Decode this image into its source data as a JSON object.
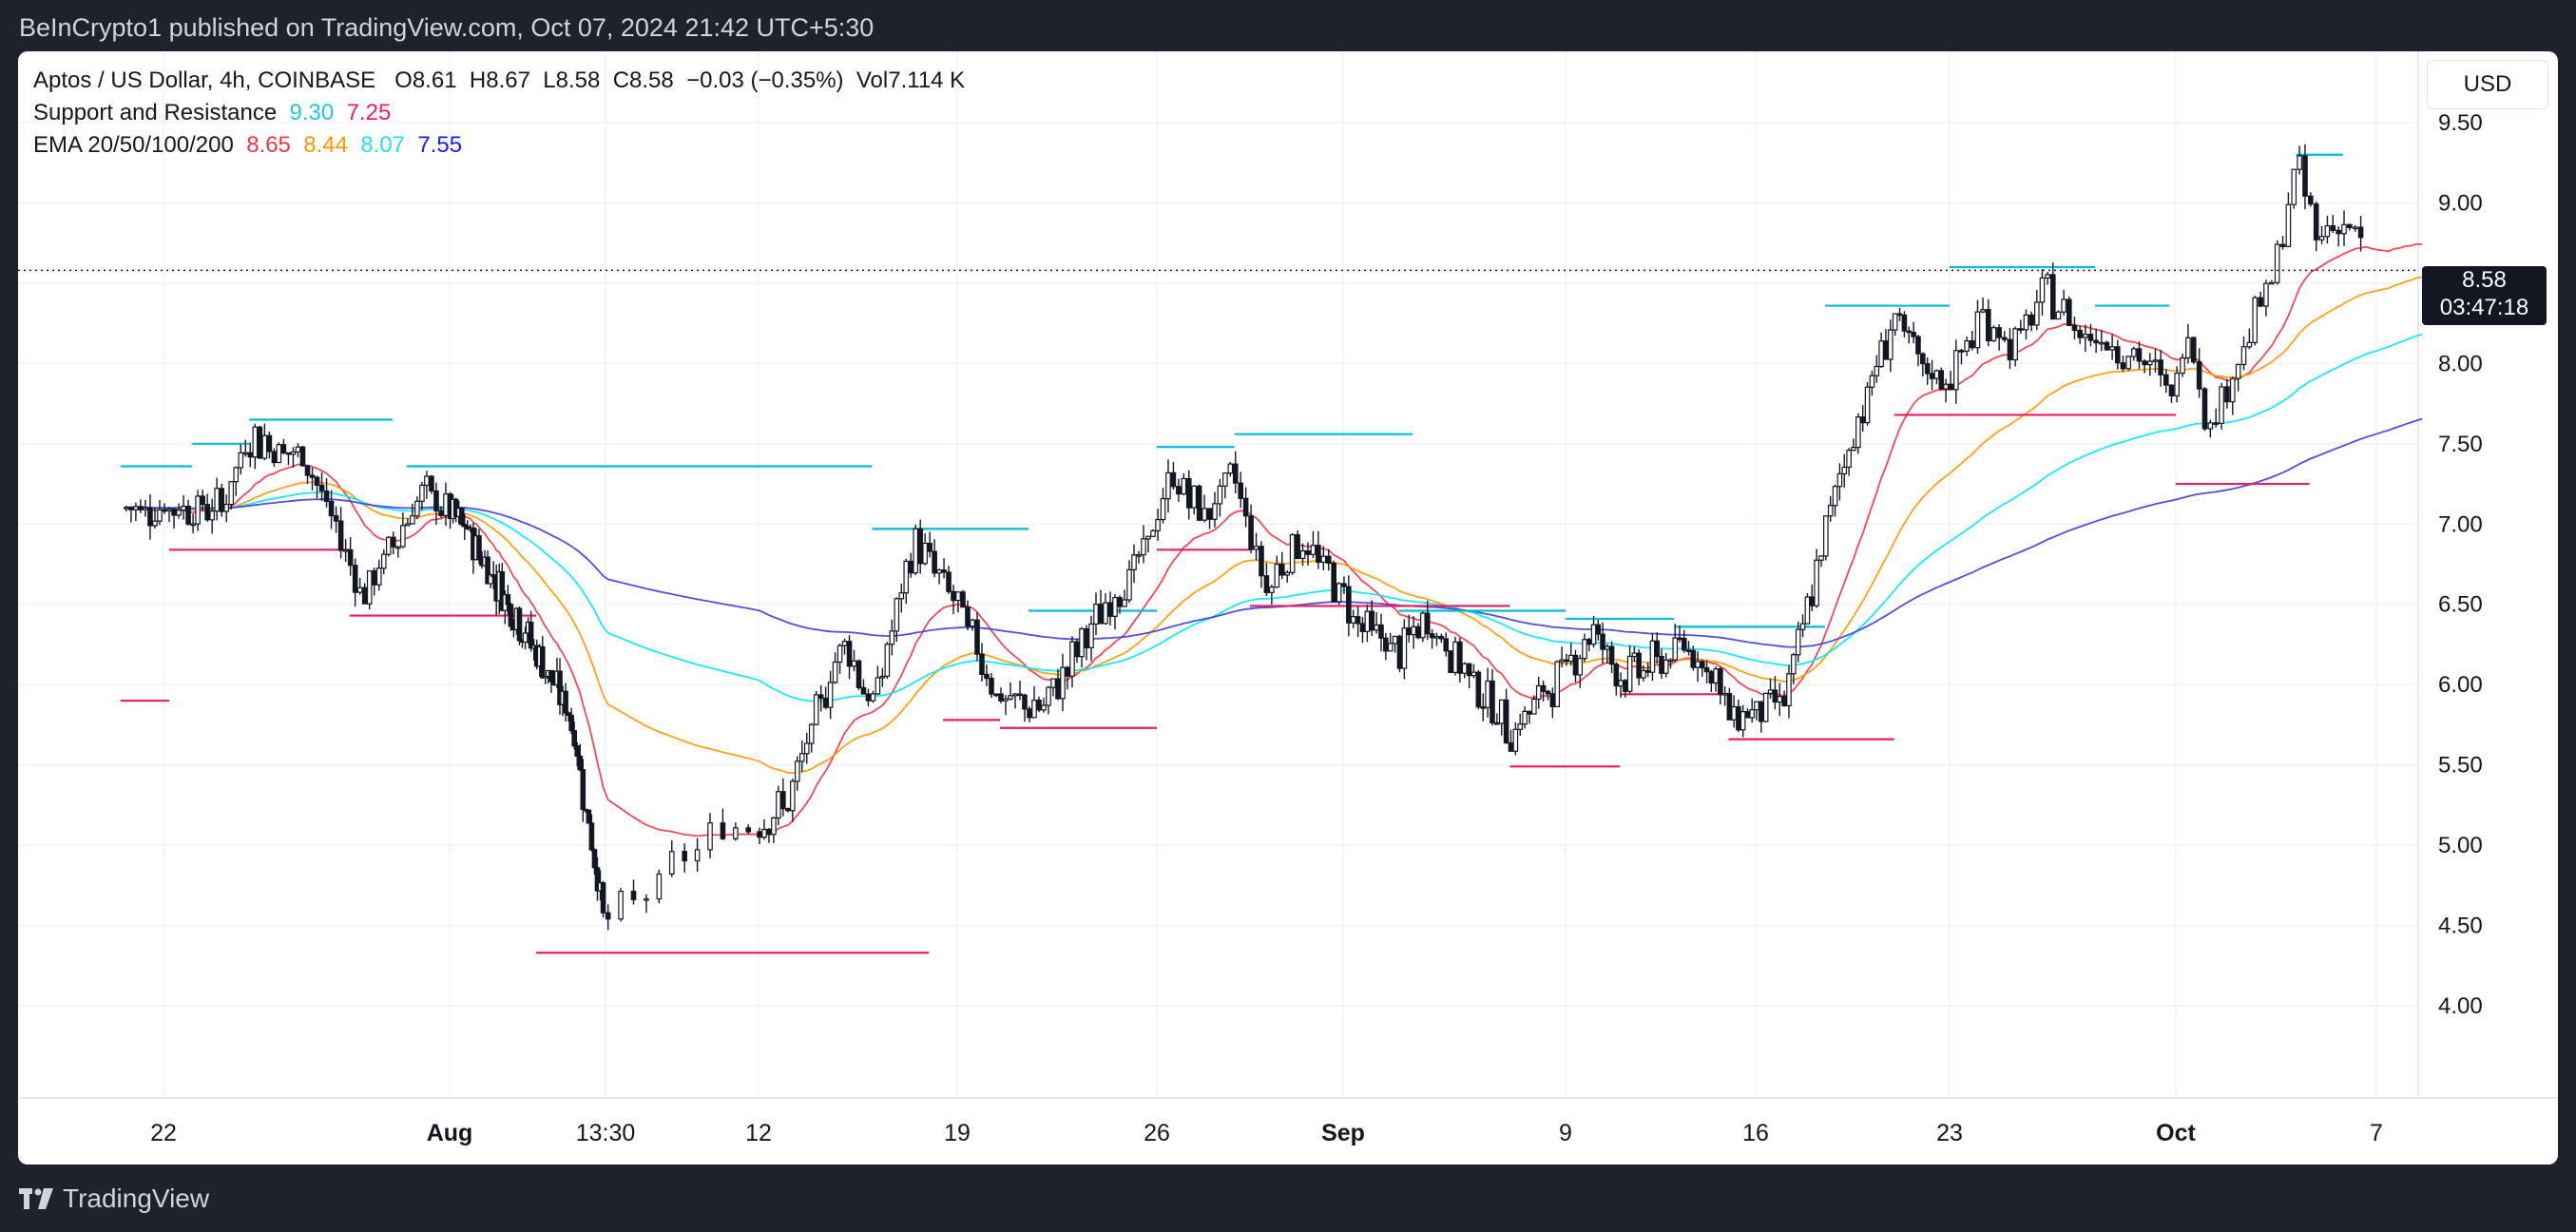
{
  "header": {
    "published_line": "BeInCrypto1 published on TradingView.com, Oct 07, 2024 21:42 UTC+5:30"
  },
  "brand": {
    "name": "TradingView"
  },
  "currency_button": "USD",
  "legend": {
    "symbol": "Aptos / US Dollar, 4h, COINBASE",
    "ohlc": {
      "o": "O8.61",
      "h": "H8.67",
      "l": "L8.58",
      "c": "C8.58",
      "change": "−0.03 (−0.35%)",
      "vol": "Vol7.114 K"
    },
    "sr_name": "Support and Resistance",
    "sr_values": [
      "9.30",
      "7.25"
    ],
    "ema_name": "EMA 20/50/100/200",
    "ema_values": [
      "8.65",
      "8.44",
      "8.07",
      "7.55"
    ]
  },
  "colors": {
    "candle": "#131722",
    "resistance": "#00bcd4",
    "support": "#e91e63",
    "ema20": "#f23645",
    "ema50": "#ff9800",
    "ema100": "#00e5ff",
    "ema200": "#3d3dd6",
    "sr_value_resistance": "#26c6da",
    "sr_value_support": "#e91e63",
    "ema_value_colors": [
      "#f23645",
      "#ff9800",
      "#26e0ea",
      "#1a1aff"
    ]
  },
  "price_tag": {
    "price": "8.58",
    "countdown": "03:47:18"
  },
  "chart_data": {
    "type": "candlestick",
    "x_ticks": [
      "22",
      "Aug",
      "13:30",
      "12",
      "19",
      "26",
      "Sep",
      "9",
      "16",
      "23",
      "Oct",
      "7"
    ],
    "y_ticks": [
      "9.50",
      "9.00",
      "8.50",
      "8.00",
      "7.50",
      "7.00",
      "6.50",
      "6.00",
      "5.50",
      "5.00",
      "4.50",
      "4.00"
    ],
    "ylim": [
      3.75,
      9.8
    ],
    "last_price": 8.58,
    "close_anchors": [
      {
        "d": 0,
        "c": 7.1
      },
      {
        "d": 2,
        "c": 7.1
      },
      {
        "d": 3,
        "c": 7.55
      },
      {
        "d": 5,
        "c": 7.4
      },
      {
        "d": 7,
        "c": 6.55
      },
      {
        "d": 9,
        "c": 7.2
      },
      {
        "d": 11,
        "c": 6.95
      },
      {
        "d": 14,
        "c": 6.4
      },
      {
        "d": 17,
        "c": 5.8
      },
      {
        "d": 19,
        "c": 4.5
      },
      {
        "d": 20.5,
        "c": 5.1
      },
      {
        "d": 22,
        "c": 5.25
      },
      {
        "d": 24,
        "c": 6.3
      },
      {
        "d": 25,
        "c": 5.85
      },
      {
        "d": 26.5,
        "c": 6.9
      },
      {
        "d": 28,
        "c": 6.5
      },
      {
        "d": 29.5,
        "c": 5.9
      },
      {
        "d": 31,
        "c": 5.85
      },
      {
        "d": 32.5,
        "c": 6.3
      },
      {
        "d": 34.5,
        "c": 6.8
      },
      {
        "d": 35.5,
        "c": 7.3
      },
      {
        "d": 36.5,
        "c": 7.05
      },
      {
        "d": 37.5,
        "c": 7.3
      },
      {
        "d": 38.5,
        "c": 6.6
      },
      {
        "d": 39.5,
        "c": 6.9
      },
      {
        "d": 40.5,
        "c": 6.7
      },
      {
        "d": 41.5,
        "c": 6.4
      },
      {
        "d": 43,
        "c": 6.2
      },
      {
        "d": 44,
        "c": 6.4
      },
      {
        "d": 46,
        "c": 5.95
      },
      {
        "d": 47,
        "c": 5.7
      },
      {
        "d": 49,
        "c": 6.1
      },
      {
        "d": 50,
        "c": 6.35
      },
      {
        "d": 51,
        "c": 6.05
      },
      {
        "d": 52.5,
        "c": 6.15
      },
      {
        "d": 53.5,
        "c": 6.25
      },
      {
        "d": 54.5,
        "c": 6.05
      },
      {
        "d": 55,
        "c": 5.8
      },
      {
        "d": 57,
        "c": 5.9
      },
      {
        "d": 57.5,
        "c": 6.2
      },
      {
        "d": 59,
        "c": 7.3
      },
      {
        "d": 60,
        "c": 7.8
      },
      {
        "d": 61,
        "c": 8.3
      },
      {
        "d": 62,
        "c": 7.95
      },
      {
        "d": 63,
        "c": 7.9
      },
      {
        "d": 64,
        "c": 8.3
      },
      {
        "d": 65,
        "c": 8.1
      },
      {
        "d": 66,
        "c": 8.45
      },
      {
        "d": 67,
        "c": 8.2
      },
      {
        "d": 68,
        "c": 8.15
      },
      {
        "d": 69,
        "c": 8.0
      },
      {
        "d": 70,
        "c": 7.8
      },
      {
        "d": 70.3,
        "c": 8.3
      },
      {
        "d": 71,
        "c": 7.6
      },
      {
        "d": 72,
        "c": 8.1
      },
      {
        "d": 73,
        "c": 8.6
      },
      {
        "d": 73.6,
        "c": 9.25
      },
      {
        "d": 74.2,
        "c": 8.8
      },
      {
        "d": 75,
        "c": 8.9
      },
      {
        "d": 76,
        "c": 8.6
      },
      {
        "d": 77,
        "c": 8.85
      },
      {
        "d": 77.5,
        "c": 8.58
      }
    ],
    "resistance_lines": [
      {
        "d1": -1.5,
        "d2": 1.0,
        "y": 7.36
      },
      {
        "d1": 1.0,
        "d2": 3.0,
        "y": 7.5
      },
      {
        "d1": 3.0,
        "d2": 8.0,
        "y": 7.65
      },
      {
        "d1": 8.5,
        "d2": 25.0,
        "y": 7.36
      },
      {
        "d1": 25.0,
        "d2": 30.5,
        "y": 6.97
      },
      {
        "d1": 30.5,
        "d2": 35.0,
        "y": 6.46
      },
      {
        "d1": 35.0,
        "d2": 37.5,
        "y": 7.48
      },
      {
        "d1": 37.5,
        "d2": 43.5,
        "y": 7.56
      },
      {
        "d1": 43.0,
        "d2": 49.0,
        "y": 6.46
      },
      {
        "d1": 49.0,
        "d2": 53.0,
        "y": 6.41
      },
      {
        "d1": 53.0,
        "d2": 58.5,
        "y": 6.36
      },
      {
        "d1": 58.5,
        "d2": 63.0,
        "y": 8.36
      },
      {
        "d1": 63.0,
        "d2": 67.5,
        "y": 8.6
      },
      {
        "d1": 67.5,
        "d2": 69.8,
        "y": 8.36
      },
      {
        "d1": 73.6,
        "d2": 75.0,
        "y": 9.3
      }
    ],
    "support_lines": [
      {
        "d1": -1.5,
        "d2": 0.2,
        "y": 5.9
      },
      {
        "d1": 0.2,
        "d2": 6.5,
        "y": 6.84
      },
      {
        "d1": 6.5,
        "d2": 15.0,
        "y": 6.43
      },
      {
        "d1": 15.0,
        "d2": 27.0,
        "y": 4.33
      },
      {
        "d1": 27.5,
        "d2": 29.5,
        "y": 5.78
      },
      {
        "d1": 29.5,
        "d2": 35.0,
        "y": 5.73
      },
      {
        "d1": 35.0,
        "d2": 38.0,
        "y": 6.84
      },
      {
        "d1": 38.0,
        "d2": 47.0,
        "y": 6.49
      },
      {
        "d1": 47.0,
        "d2": 51.0,
        "y": 5.49
      },
      {
        "d1": 51.0,
        "d2": 55.0,
        "y": 5.94
      },
      {
        "d1": 55.0,
        "d2": 61.0,
        "y": 5.66
      },
      {
        "d1": 61.0,
        "d2": 70.0,
        "y": 7.68
      },
      {
        "d1": 70.0,
        "d2": 74.0,
        "y": 7.25
      }
    ],
    "ema_periods": [
      20,
      50,
      100,
      200
    ]
  }
}
